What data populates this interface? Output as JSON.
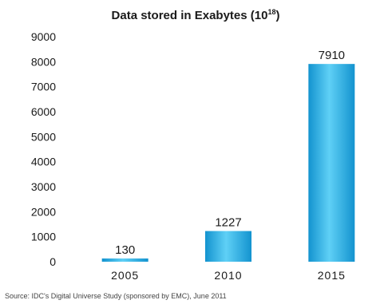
{
  "chart_data": {
    "type": "bar",
    "title": "Data stored in Exabytes (10",
    "title_superscript": "18",
    "title_suffix": ")",
    "categories": [
      "2005",
      "2010",
      "2015"
    ],
    "values": [
      130,
      1227,
      7910
    ],
    "data_labels": [
      "130",
      "1227",
      "7910"
    ],
    "y_ticks": [
      "0",
      "1000",
      "2000",
      "3000",
      "4000",
      "5000",
      "6000",
      "7000",
      "8000",
      "9000"
    ],
    "ylim": [
      0,
      9000
    ],
    "xlabel": "",
    "ylabel": "",
    "grid": false,
    "legend": "none",
    "source": "Source: IDC's Digital Universe Study (sponsored by EMC), June 2011",
    "colors": {
      "bar_light": "#5fd0f6",
      "bar_dark": "#1393cf",
      "text": "#1a1a1a"
    }
  }
}
